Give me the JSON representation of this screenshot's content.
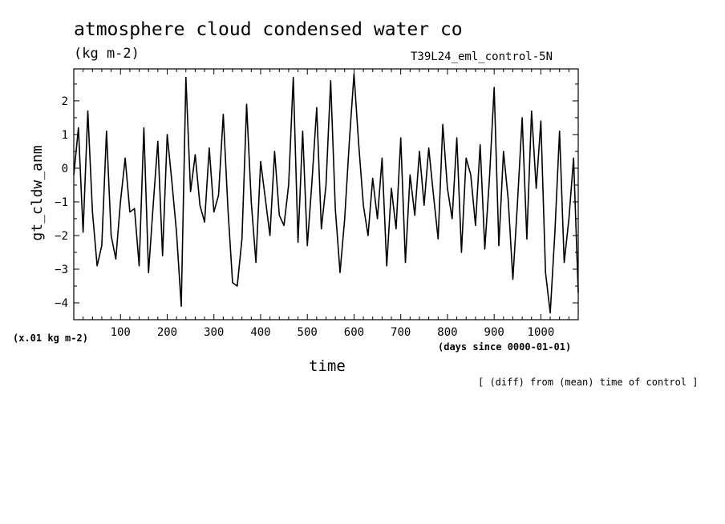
{
  "chart_data": {
    "type": "line",
    "title": "atmosphere cloud condensed water co",
    "unit": "(kg m-2)",
    "run_label": "T39L24_eml_control-5N",
    "ylabel": "gt_cldw_anm",
    "y_scale_note": "(x.01 kg m-2)",
    "xlabel": "time",
    "x_unit": "(days since 0000-01-01)",
    "footnote": "[ (diff) from (mean) time of control ]",
    "xlim": [
      0,
      1080
    ],
    "ylim": [
      -4.5,
      2.95
    ],
    "x_ticks": [
      100,
      200,
      300,
      400,
      500,
      600,
      700,
      800,
      900,
      1000
    ],
    "y_ticks": [
      -4,
      -3,
      -2,
      -1,
      0,
      1,
      2
    ],
    "y_tick_labels": [
      "−4",
      "−3",
      "−2",
      "−1",
      "0",
      "1",
      "2"
    ],
    "grid": false,
    "line_color": "#000000",
    "series": [
      {
        "x": [
          0,
          10,
          20,
          30,
          40,
          50,
          60,
          70,
          80,
          90,
          100,
          110,
          120,
          130,
          140,
          150,
          160,
          170,
          180,
          190,
          200,
          210,
          220,
          230,
          240,
          250,
          260,
          270,
          280,
          290,
          300,
          310,
          320,
          330,
          340,
          350,
          360,
          370,
          380,
          390,
          400,
          410,
          420,
          430,
          440,
          450,
          460,
          470,
          480,
          490,
          500,
          510,
          520,
          530,
          540,
          550,
          560,
          570,
          580,
          590,
          600,
          610,
          620,
          630,
          640,
          650,
          660,
          670,
          680,
          690,
          700,
          710,
          720,
          730,
          740,
          750,
          760,
          770,
          780,
          790,
          800,
          810,
          820,
          830,
          840,
          850,
          860,
          870,
          880,
          890,
          900,
          910,
          920,
          930,
          940,
          950,
          960,
          970,
          980,
          990,
          1000,
          1010,
          1020,
          1030,
          1040,
          1050,
          1060,
          1070,
          1080
        ],
        "values": [
          -0.2,
          1.2,
          -1.9,
          1.7,
          -1.3,
          -2.9,
          -2.3,
          1.1,
          -2.0,
          -2.7,
          -1.0,
          0.3,
          -1.3,
          -1.2,
          -2.9,
          1.2,
          -3.1,
          -1.1,
          0.8,
          -2.6,
          1.0,
          -0.4,
          -1.9,
          -4.1,
          2.7,
          -0.7,
          0.4,
          -1.1,
          -1.6,
          0.6,
          -1.3,
          -0.8,
          1.6,
          -1.2,
          -3.4,
          -3.5,
          -2.1,
          1.9,
          -1.0,
          -2.8,
          0.2,
          -0.9,
          -2.0,
          0.5,
          -1.4,
          -1.7,
          -0.5,
          2.7,
          -2.2,
          1.1,
          -2.3,
          -0.4,
          1.8,
          -1.8,
          -0.5,
          2.6,
          -1.2,
          -3.1,
          -1.5,
          0.8,
          2.8,
          0.7,
          -1.1,
          -2.0,
          -0.3,
          -1.5,
          0.3,
          -2.9,
          -0.6,
          -1.8,
          0.9,
          -2.8,
          -0.2,
          -1.4,
          0.5,
          -1.1,
          0.6,
          -0.8,
          -2.1,
          1.3,
          -0.6,
          -1.5,
          0.9,
          -2.5,
          0.3,
          -0.2,
          -1.7,
          0.7,
          -2.4,
          -0.3,
          2.4,
          -2.3,
          0.5,
          -0.9,
          -3.3,
          -1.0,
          1.5,
          -2.1,
          1.7,
          -0.6,
          1.4,
          -3.1,
          -4.3,
          -1.9,
          1.1,
          -2.8,
          -1.5,
          0.3,
          -3.7
        ]
      }
    ]
  }
}
